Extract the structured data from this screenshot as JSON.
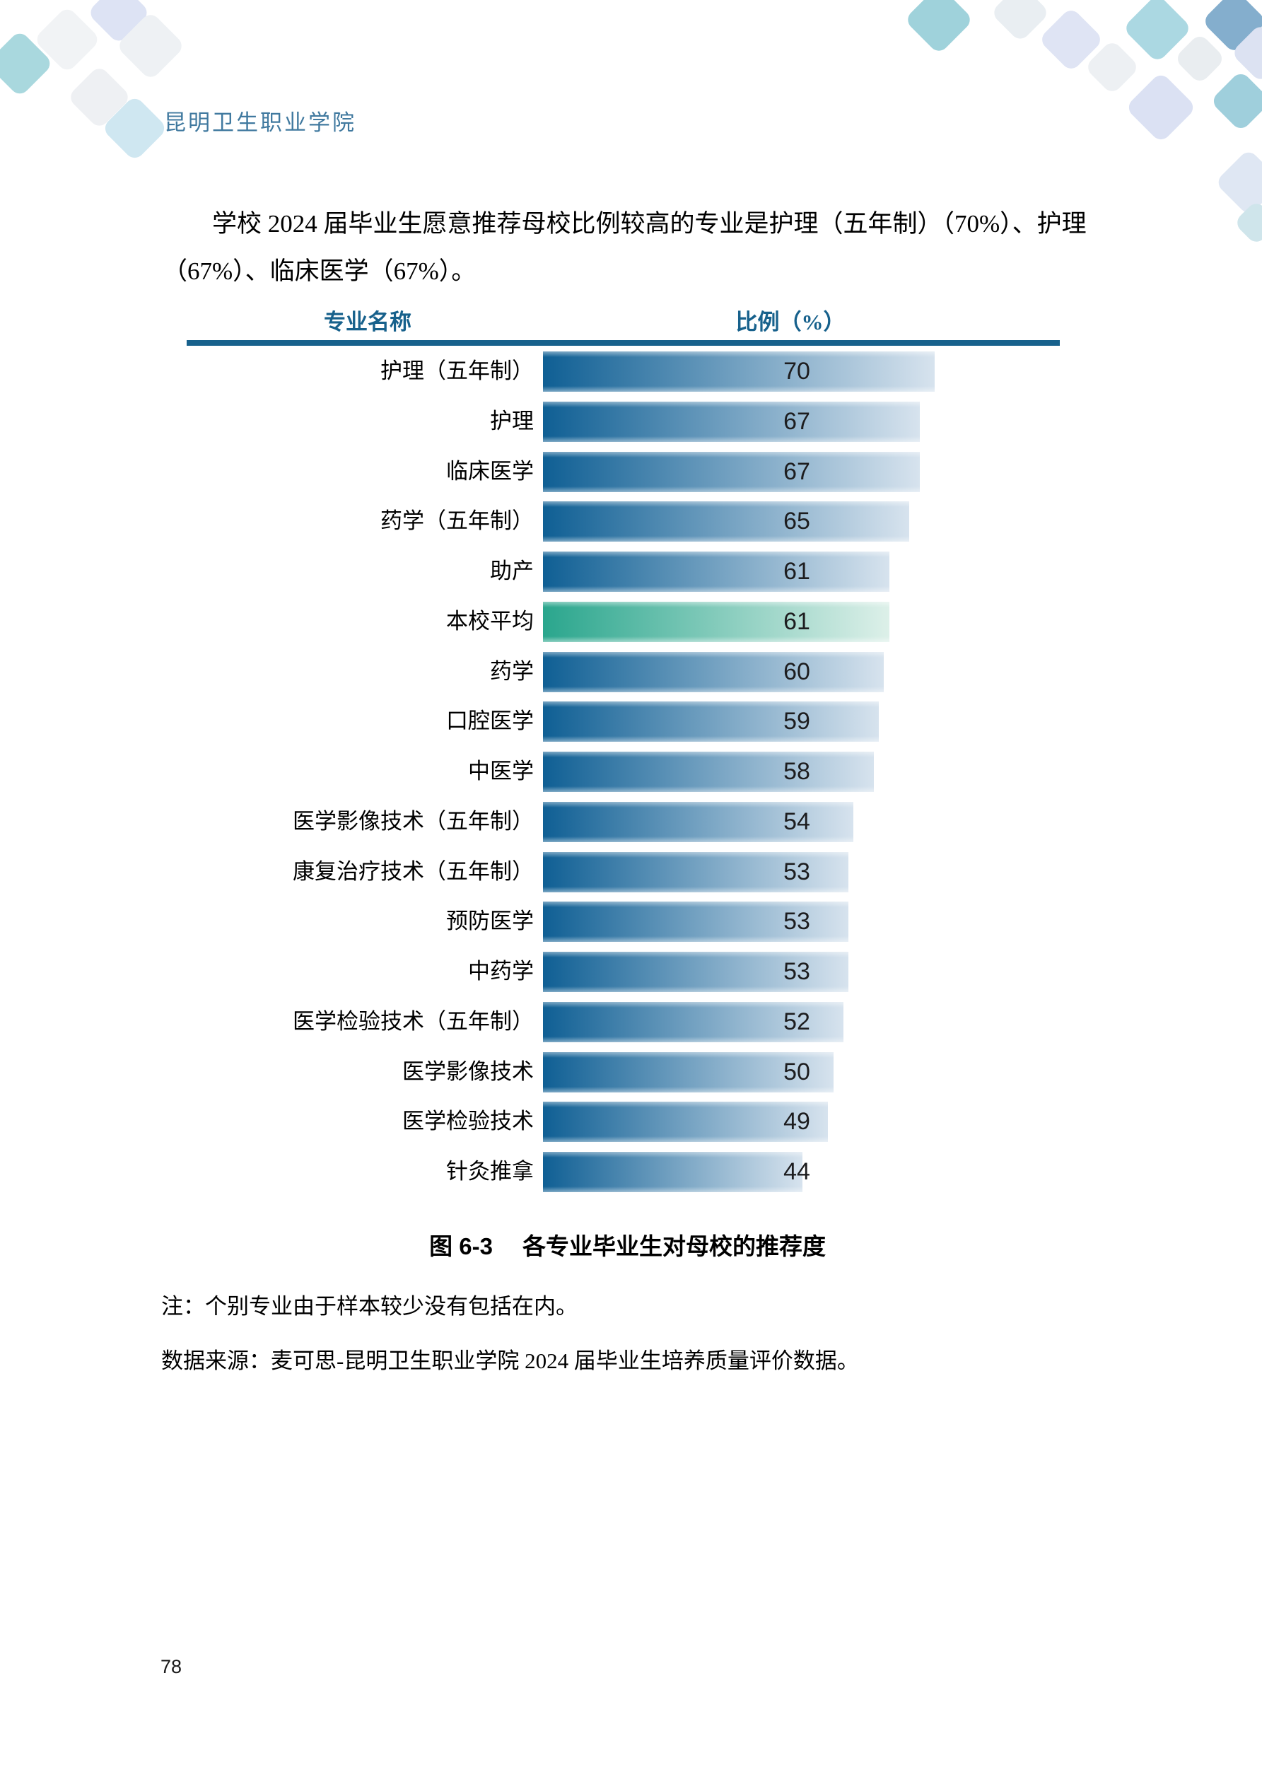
{
  "page": {
    "institution": "昆明卫生职业学院",
    "page_number": "78"
  },
  "paragraph": {
    "lines": [
      "学校 2024 届毕业生愿意推荐母校比例较高的专业是护理（五年制）（70%）、护理",
      "（67%）、临床医学（67%）。"
    ]
  },
  "table_headers": {
    "name": "专业名称",
    "value": "比例（%）"
  },
  "caption": {
    "figure_label": "图 6-3",
    "title": "各专业毕业生对母校的推荐度"
  },
  "notes": {
    "note1": "注：个别专业由于样本较少没有包括在内。",
    "note2": "数据来源：麦可思-昆明卫生职业学院 2024 届毕业生培养质量评价数据。"
  },
  "chart_data": {
    "type": "bar",
    "orientation": "horizontal",
    "title": "各专业毕业生对母校的推荐度",
    "xlabel": "比例（%）",
    "ylabel": "专业名称",
    "xlim": [
      0,
      70
    ],
    "grid": false,
    "categories": [
      "护理（五年制）",
      "护理",
      "临床医学",
      "药学（五年制）",
      "助产",
      "本校平均",
      "药学",
      "口腔医学",
      "中医学",
      "医学影像技术（五年制）",
      "康复治疗技术（五年制）",
      "预防医学",
      "中药学",
      "医学检验技术（五年制）",
      "医学影像技术",
      "医学检验技术",
      "针灸推拿"
    ],
    "values": [
      70,
      67,
      67,
      65,
      61,
      61,
      60,
      59,
      58,
      54,
      53,
      53,
      53,
      52,
      50,
      49,
      44
    ],
    "highlight_index": 5,
    "highlight_category": "本校平均",
    "colors": {
      "bar_blue_start": "#0f5f94",
      "bar_blue_end": "#d7e3ee",
      "bar_green_start": "#2aa68d",
      "bar_green_end": "#ddf0e9",
      "header_accent": "#17618c",
      "institution_text": "#40799f",
      "value_text": "#1d1d1f"
    }
  }
}
